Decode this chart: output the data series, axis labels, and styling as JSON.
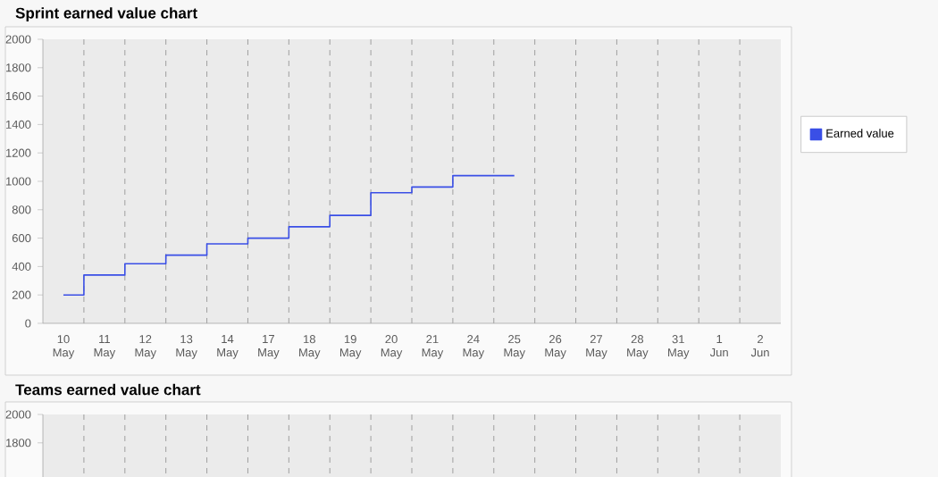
{
  "chart_data": [
    {
      "type": "step",
      "title": "Sprint earned value chart",
      "categories": [
        "10 May",
        "11 May",
        "12 May",
        "13 May",
        "14 May",
        "17 May",
        "18 May",
        "19 May",
        "20 May",
        "21 May",
        "24 May",
        "25 May",
        "26 May",
        "27 May",
        "28 May",
        "31 May",
        "1 Jun",
        "2 Jun"
      ],
      "series": [
        {
          "name": "Earned value",
          "color": "#3a4fe6",
          "values": [
            200,
            340,
            420,
            480,
            560,
            600,
            680,
            760,
            920,
            960,
            1040,
            1040,
            null,
            null,
            null,
            null,
            null,
            null
          ]
        }
      ],
      "ylim": [
        0,
        2000
      ],
      "yticks": [
        0,
        200,
        400,
        600,
        800,
        1000,
        1200,
        1400,
        1600,
        1800,
        2000
      ],
      "grid": "x",
      "legend": "right"
    },
    {
      "type": "step",
      "title": "Teams earned value chart",
      "categories": [
        null,
        null,
        null,
        null,
        null,
        null,
        null,
        null,
        null,
        null,
        null,
        null,
        null,
        null,
        null,
        null,
        null,
        null
      ],
      "ylim": [
        0,
        2000
      ],
      "yticks": [
        1800,
        2000
      ],
      "grid": "x",
      "tick_labels": "y"
    }
  ]
}
